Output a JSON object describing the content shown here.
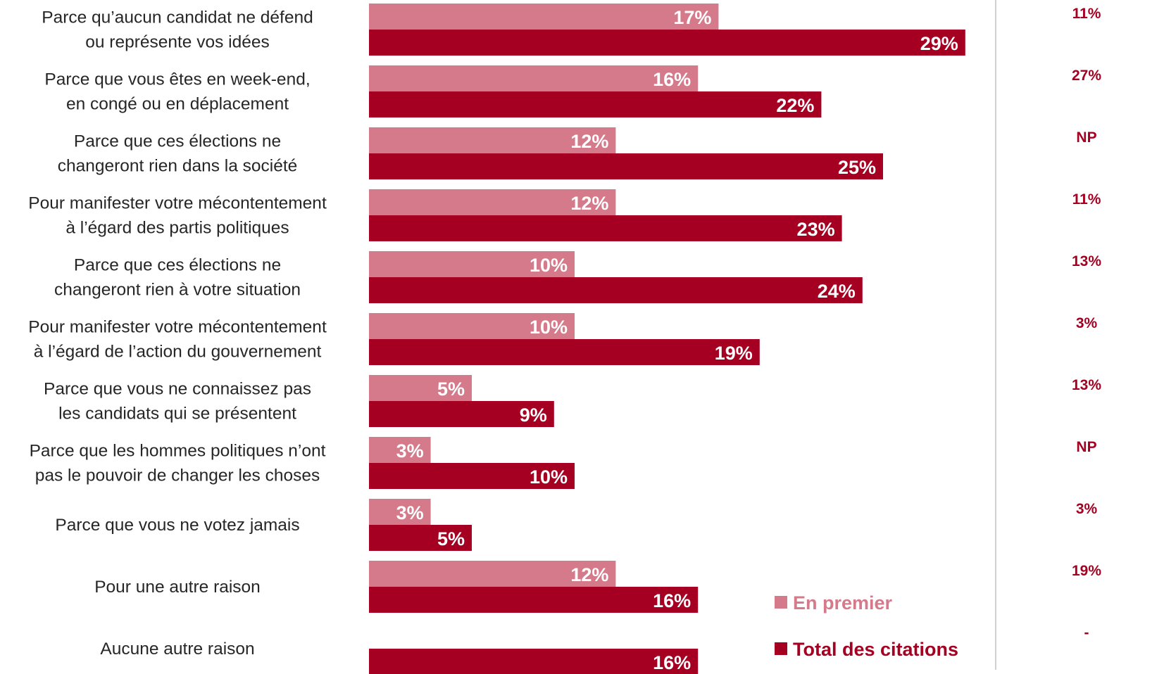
{
  "chart_data": {
    "type": "bar",
    "orientation": "horizontal",
    "categories": [
      [
        "Parce qu’aucun candidat ne défend",
        "ou représente vos idées"
      ],
      [
        "Parce que vous êtes en week-end,",
        "en congé ou en déplacement"
      ],
      [
        "Parce que ces élections ne",
        "changeront rien dans la société"
      ],
      [
        "Pour manifester votre mécontentement",
        "à l’égard des partis politiques"
      ],
      [
        "Parce que ces élections ne",
        "changeront rien à votre situation"
      ],
      [
        "Pour manifester votre mécontentement",
        "à l’égard de l’action du gouvernement"
      ],
      [
        "Parce que vous ne connaissez pas",
        "les candidats qui se présentent"
      ],
      [
        "Parce que les hommes politiques n’ont",
        "pas le pouvoir de changer les choses"
      ],
      [
        "Parce que vous ne votez jamais"
      ],
      [
        "Pour une autre raison"
      ],
      [
        "Aucune autre raison"
      ]
    ],
    "series": [
      {
        "name": "En premier",
        "color": "#d47a8a",
        "values": [
          17,
          16,
          12,
          12,
          10,
          10,
          5,
          3,
          3,
          12,
          null
        ],
        "labels": [
          "17%",
          "16%",
          "12%",
          "12%",
          "10%",
          "10%",
          "5%",
          "3%",
          "3%",
          "12%",
          ""
        ]
      },
      {
        "name": "Total des citations",
        "color": "#a50021",
        "values": [
          29,
          22,
          25,
          23,
          24,
          19,
          9,
          10,
          5,
          16,
          16
        ],
        "labels": [
          "29%",
          "22%",
          "25%",
          "23%",
          "24%",
          "19%",
          "9%",
          "10%",
          "5%",
          "16%",
          "16%"
        ]
      }
    ],
    "side_column": [
      "11%",
      "27%",
      "NP",
      "11%",
      "13%",
      "3%",
      "13%",
      "NP",
      "3%",
      "19%",
      "-"
    ],
    "legend_position": "bottom-right",
    "grid": false
  }
}
